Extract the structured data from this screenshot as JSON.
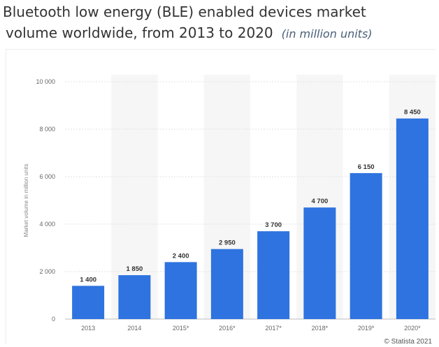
{
  "title_line1": "Bluetooth low energy (BLE) enabled devices market",
  "title_line2": "volume  worldwide, from 2013 to 2020",
  "subtitle": "(in million units)",
  "credit": "© Statista 2021",
  "chart_data": {
    "type": "bar",
    "title": "Bluetooth low energy (BLE) enabled devices market volume worldwide, from 2013 to 2020",
    "subtitle": "(in million units)",
    "xlabel": "",
    "ylabel": "Market volume in million units",
    "categories": [
      "2013",
      "2014",
      "2015*",
      "2016*",
      "2017*",
      "2018*",
      "2019*",
      "2020*"
    ],
    "values": [
      1400,
      1850,
      2400,
      2950,
      3700,
      4700,
      6150,
      8450
    ],
    "value_labels": [
      "1 400",
      "1 850",
      "2 400",
      "2 950",
      "3 700",
      "4 700",
      "6 150",
      "8 450"
    ],
    "ylim": [
      0,
      10000
    ],
    "y_ticks": [
      0,
      2000,
      4000,
      6000,
      8000,
      10000
    ],
    "y_tick_labels": [
      "0",
      "2 000",
      "4 000",
      "6 000",
      "8 000",
      "10 000"
    ],
    "grid": true,
    "legend": "none",
    "bar_color": "#2e73e0",
    "band_color": "#f6f6f6"
  }
}
